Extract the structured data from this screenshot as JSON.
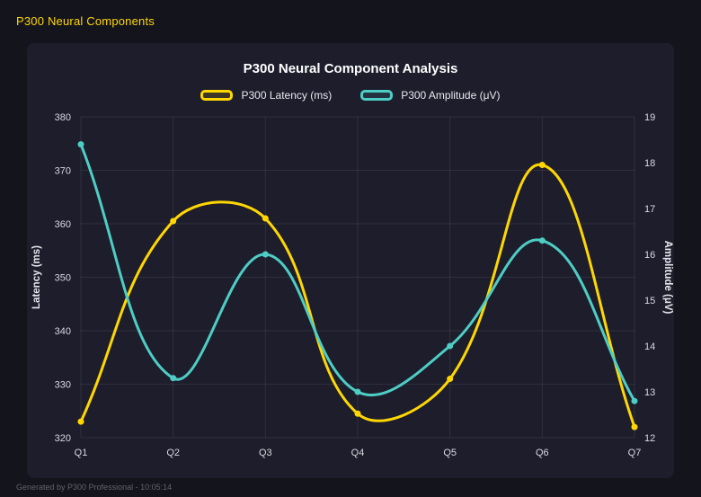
{
  "page": {
    "header": "P300 Neural Components",
    "footer": "Generated by P300 Professional - 10:05:14"
  },
  "colors": {
    "page_bg": "#14141d",
    "panel_bg": "#1d1d2c",
    "accent": "#FFD700",
    "muted": "#63636e",
    "grid": "rgba(255,255,255,0.08)",
    "text": "#e9e9f0"
  },
  "chart_data": {
    "type": "line",
    "title": "P300 Neural Component Analysis",
    "categories": [
      "Q1",
      "Q2",
      "Q3",
      "Q4",
      "Q5",
      "Q6",
      "Q7"
    ],
    "series": [
      {
        "name": "P300 Latency (ms)",
        "axis": "left",
        "color": "#FFD700",
        "values": [
          323,
          360.5,
          361,
          324.5,
          331,
          371,
          322
        ]
      },
      {
        "name": "P300 Amplitude (μV)",
        "axis": "right",
        "color": "#4ECDC4",
        "values": [
          18.4,
          13.3,
          16.0,
          13.0,
          14.0,
          16.3,
          12.8
        ]
      }
    ],
    "left_axis": {
      "label": "Latency (ms)",
      "min": 320,
      "max": 380,
      "step": 10
    },
    "right_axis": {
      "label": "Amplitude (μV)",
      "min": 12,
      "max": 19,
      "step": 1
    },
    "grid": true,
    "legend_position": "top",
    "curve_tension": 0.4
  }
}
